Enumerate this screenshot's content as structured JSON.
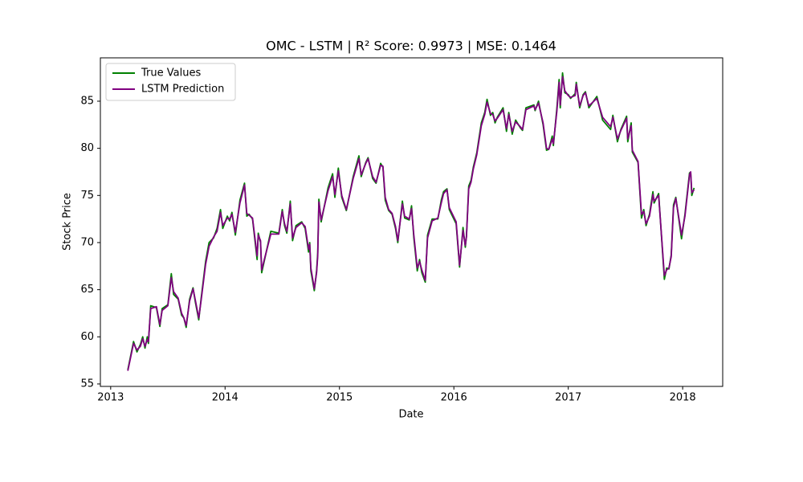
{
  "chart_data": {
    "type": "line",
    "title": "OMC - LSTM | R² Score: 0.9973 | MSE: 0.1464",
    "x_label": "Date",
    "y_label": "Stock Price",
    "xlim": [
      2012.91,
      2018.35
    ],
    "xticks": [
      2013,
      2014,
      2015,
      2016,
      2017,
      2018
    ],
    "ylim": [
      54.74,
      89.6
    ],
    "yticks": [
      55,
      60,
      65,
      70,
      75,
      80,
      85
    ],
    "grid": false,
    "legend": "upper left",
    "x": [
      2013.15,
      2013.2,
      2013.23,
      2013.26,
      2013.28,
      2013.3,
      2013.32,
      2013.33,
      2013.35,
      2013.4,
      2013.43,
      2013.45,
      2013.5,
      2013.53,
      2013.55,
      2013.59,
      2013.62,
      2013.64,
      2013.66,
      2013.69,
      2013.72,
      2013.74,
      2013.77,
      2013.79,
      2013.83,
      2013.86,
      2013.9,
      2013.93,
      2013.96,
      2013.98,
      2014.02,
      2014.04,
      2014.06,
      2014.09,
      2014.13,
      2014.17,
      2014.19,
      2014.21,
      2014.24,
      2014.28,
      2014.29,
      2014.31,
      2014.32,
      2014.4,
      2014.47,
      2014.5,
      2014.52,
      2014.54,
      2014.57,
      2014.59,
      2014.62,
      2014.67,
      2014.7,
      2014.73,
      2014.74,
      2014.75,
      2014.78,
      2014.8,
      2014.81,
      2014.82,
      2014.84,
      2014.9,
      2014.94,
      2014.96,
      2014.99,
      2015.02,
      2015.06,
      2015.12,
      2015.17,
      2015.19,
      2015.23,
      2015.25,
      2015.29,
      2015.32,
      2015.36,
      2015.38,
      2015.4,
      2015.43,
      2015.46,
      2015.49,
      2015.51,
      2015.55,
      2015.57,
      2015.61,
      2015.63,
      2015.65,
      2015.68,
      2015.7,
      2015.72,
      2015.75,
      2015.77,
      2015.81,
      2015.86,
      2015.89,
      2015.91,
      2015.94,
      2015.96,
      2016.02,
      2016.05,
      2016.08,
      2016.1,
      2016.11,
      2016.13,
      2016.15,
      2016.17,
      2016.2,
      2016.24,
      2016.27,
      2016.29,
      2016.32,
      2016.34,
      2016.36,
      2016.38,
      2016.43,
      2016.46,
      2016.48,
      2016.51,
      2016.54,
      2016.58,
      2016.6,
      2016.63,
      2016.7,
      2016.71,
      2016.74,
      2016.78,
      2016.81,
      2016.83,
      2016.86,
      2016.87,
      2016.9,
      2016.92,
      2016.93,
      2016.95,
      2016.97,
      2017.0,
      2017.02,
      2017.06,
      2017.07,
      2017.1,
      2017.13,
      2017.15,
      2017.18,
      2017.25,
      2017.3,
      2017.37,
      2017.39,
      2017.43,
      2017.46,
      2017.51,
      2017.52,
      2017.55,
      2017.56,
      2017.61,
      2017.64,
      2017.66,
      2017.68,
      2017.71,
      2017.74,
      2017.75,
      2017.79,
      2017.84,
      2017.86,
      2017.88,
      2017.9,
      2017.92,
      2017.94,
      2017.99,
      2018.02,
      2018.06,
      2018.07,
      2018.08,
      2018.1
    ],
    "series": [
      {
        "name": "True Values",
        "color": "#008000",
        "values": [
          56.5,
          59.5,
          58.4,
          59.2,
          60,
          58.8,
          60,
          59.3,
          63.3,
          63.1,
          61.1,
          63,
          63.4,
          66.7,
          64.5,
          64,
          62.3,
          62,
          61,
          64,
          65.2,
          63.7,
          61.8,
          64,
          68,
          70,
          70.5,
          71.5,
          73.5,
          71.5,
          72.8,
          72.3,
          73.2,
          70.8,
          74.5,
          76.3,
          72.8,
          73,
          72.5,
          68.2,
          71,
          70,
          66.8,
          71.2,
          71,
          73.5,
          71.8,
          71,
          74.4,
          70.2,
          71.8,
          72.2,
          71.5,
          69,
          70,
          67,
          64.9,
          67,
          68.9,
          74.6,
          72.2,
          75.8,
          77.3,
          74.8,
          77.9,
          74.8,
          73.4,
          77,
          79.2,
          77,
          78.5,
          79,
          76.8,
          76.3,
          78.4,
          78,
          74.5,
          73.4,
          73,
          71.5,
          70,
          74.4,
          72.6,
          72.4,
          73.9,
          70.5,
          67,
          68.2,
          66.8,
          65.8,
          70.8,
          72.5,
          72.5,
          74.5,
          75.4,
          75.7,
          73.5,
          72,
          67.4,
          71.6,
          69.5,
          70.7,
          76,
          76.6,
          78,
          79.5,
          82.7,
          83.8,
          85.2,
          83.5,
          83.8,
          82.7,
          83.3,
          84.3,
          81.8,
          83.8,
          81.5,
          83,
          82.2,
          81.9,
          84.3,
          84.6,
          84,
          85,
          82.5,
          79.8,
          79.9,
          81.3,
          80.3,
          84.2,
          87.3,
          84.3,
          88,
          85.9,
          85.7,
          85.3,
          85.8,
          87,
          84.3,
          85.7,
          86,
          84.3,
          85.5,
          83,
          82,
          83.5,
          80.7,
          82,
          83.4,
          80.7,
          82.7,
          79.6,
          78.5,
          72.6,
          73.5,
          71.8,
          73,
          75.4,
          74.2,
          75.2,
          66.1,
          67.3,
          67.2,
          68.7,
          74,
          74.8,
          70.4,
          73,
          77.4,
          77.4,
          75,
          75.8
        ]
      },
      {
        "name": "LSTM Prediction",
        "color": "#800080",
        "values": [
          56.4,
          59.3,
          58.6,
          59,
          59.8,
          59,
          59.7,
          59.5,
          63,
          63.2,
          61.3,
          62.8,
          63.3,
          66.3,
          64.8,
          64.1,
          62.5,
          62,
          61.2,
          63.8,
          65.1,
          63.9,
          62,
          63.8,
          67.7,
          69.6,
          70.6,
          71.2,
          73.2,
          71.8,
          72.6,
          72.5,
          73,
          71.1,
          74.2,
          76.1,
          73.1,
          72.9,
          72.6,
          68.6,
          70.8,
          70.2,
          67.1,
          70.9,
          70.9,
          73.3,
          72,
          71.2,
          74.1,
          70.5,
          71.6,
          72.1,
          71.7,
          69.3,
          69.8,
          67.3,
          65.1,
          66.8,
          68.6,
          74.3,
          72.4,
          75.5,
          77,
          75.1,
          77.6,
          75,
          73.5,
          76.8,
          78.9,
          77.2,
          78.4,
          78.9,
          77,
          76.4,
          78.2,
          78.1,
          74.8,
          73.5,
          73.1,
          71.7,
          70.2,
          74.1,
          72.8,
          72.5,
          73.6,
          70.8,
          67.3,
          68,
          67.1,
          66,
          70.5,
          72.3,
          72.6,
          74.2,
          75.2,
          75.6,
          73.7,
          72.2,
          67.6,
          71.3,
          69.7,
          70.6,
          75.7,
          76.4,
          77.8,
          79.3,
          82.4,
          83.6,
          84.9,
          83.7,
          83.6,
          82.9,
          83.2,
          84.1,
          82.1,
          83.6,
          81.8,
          82.8,
          82.3,
          82,
          84.1,
          84.5,
          84.1,
          84.8,
          82.7,
          80,
          79.9,
          81,
          80.5,
          83.9,
          87,
          84.6,
          87.6,
          86.1,
          85.6,
          85.4,
          85.6,
          86.8,
          84.5,
          85.6,
          85.9,
          84.5,
          85.3,
          83.3,
          82.3,
          83.3,
          81,
          81.9,
          83.2,
          81,
          82.4,
          79.8,
          78.6,
          73,
          73.3,
          72,
          72.8,
          75.1,
          74.4,
          75,
          66.5,
          67.1,
          67.3,
          68.5,
          73.7,
          74.7,
          70.8,
          72.8,
          77.2,
          77.5,
          75.3,
          75.6
        ]
      }
    ]
  }
}
